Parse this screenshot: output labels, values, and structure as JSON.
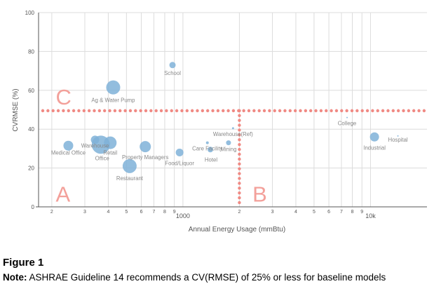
{
  "chart_data": {
    "type": "scatter",
    "xscale": "log",
    "xlabel": "Annual Energy Usage (mmBtu)",
    "ylabel": "CVRMSE (%)",
    "xlim": [
      170,
      20000
    ],
    "ylim": [
      0,
      100
    ],
    "y_ticks": [
      0,
      20,
      40,
      60,
      80,
      100
    ],
    "x_ticks": [
      {
        "value": 200,
        "label": "2"
      },
      {
        "value": 300,
        "label": "3"
      },
      {
        "value": 400,
        "label": "4"
      },
      {
        "value": 500,
        "label": "5"
      },
      {
        "value": 600,
        "label": "6"
      },
      {
        "value": 700,
        "label": "7"
      },
      {
        "value": 800,
        "label": "8"
      },
      {
        "value": 900,
        "label": "9"
      },
      {
        "value": 1000,
        "label": "1000"
      },
      {
        "value": 2000,
        "label": "2"
      },
      {
        "value": 3000,
        "label": "3"
      },
      {
        "value": 4000,
        "label": "4"
      },
      {
        "value": 5000,
        "label": "5"
      },
      {
        "value": 6000,
        "label": "6"
      },
      {
        "value": 7000,
        "label": "7"
      },
      {
        "value": 8000,
        "label": "8"
      },
      {
        "value": 9000,
        "label": "9"
      },
      {
        "value": 10000,
        "label": "10k"
      }
    ],
    "grid": true,
    "points": [
      {
        "label": "Medical Office",
        "x": 245,
        "y": 31.5,
        "size": 14
      },
      {
        "label": "Warehouse",
        "x": 340,
        "y": 34.5,
        "size": 12
      },
      {
        "label": "Office",
        "x": 365,
        "y": 32,
        "size": 26
      },
      {
        "label": "Retail",
        "x": 410,
        "y": 33,
        "size": 18
      },
      {
        "label": "Ag & Water Pump",
        "x": 425,
        "y": 61.5,
        "size": 20
      },
      {
        "label": "Restaurant",
        "x": 520,
        "y": 21,
        "size": 20
      },
      {
        "label": "Property Managers",
        "x": 630,
        "y": 31,
        "size": 16
      },
      {
        "label": "School",
        "x": 880,
        "y": 73,
        "size": 9
      },
      {
        "label": "Food/Liquor",
        "x": 960,
        "y": 28,
        "size": 11
      },
      {
        "label": "Care Facility",
        "x": 1350,
        "y": 33,
        "size": 4
      },
      {
        "label": "Hotel",
        "x": 1400,
        "y": 29.5,
        "size": 8
      },
      {
        "label": "Mining",
        "x": 1750,
        "y": 33,
        "size": 7
      },
      {
        "label": "Warehouse(Ref)",
        "x": 1850,
        "y": 40.5,
        "size": 3
      },
      {
        "label": "College",
        "x": 7500,
        "y": 46,
        "size": 2
      },
      {
        "label": "Industrial",
        "x": 10500,
        "y": 36,
        "size": 13
      },
      {
        "label": "Hospital",
        "x": 14000,
        "y": 36.5,
        "size": 2
      }
    ],
    "threshold_lines": [
      {
        "orientation": "horizontal",
        "y": 49.5,
        "color": "#f08a84"
      },
      {
        "orientation": "vertical",
        "x": 2000,
        "y_max": 49.5,
        "color": "#f08a84"
      }
    ],
    "region_labels": [
      {
        "text": "C",
        "x": 210,
        "y": 57
      },
      {
        "text": "A",
        "x": 210,
        "y": 7
      },
      {
        "text": "B",
        "x": 2350,
        "y": 7
      }
    ],
    "colors": {
      "point": "#7fb2d8",
      "threshold": "#f08a84",
      "grid": "#dcdcdc",
      "text": "#555555"
    }
  },
  "caption": {
    "title": "Figure 1",
    "note_label": "Note:",
    "note_text": " ASHRAE Guideline 14 recommends a CV(RMSE) of 25% or less for baseline models"
  }
}
